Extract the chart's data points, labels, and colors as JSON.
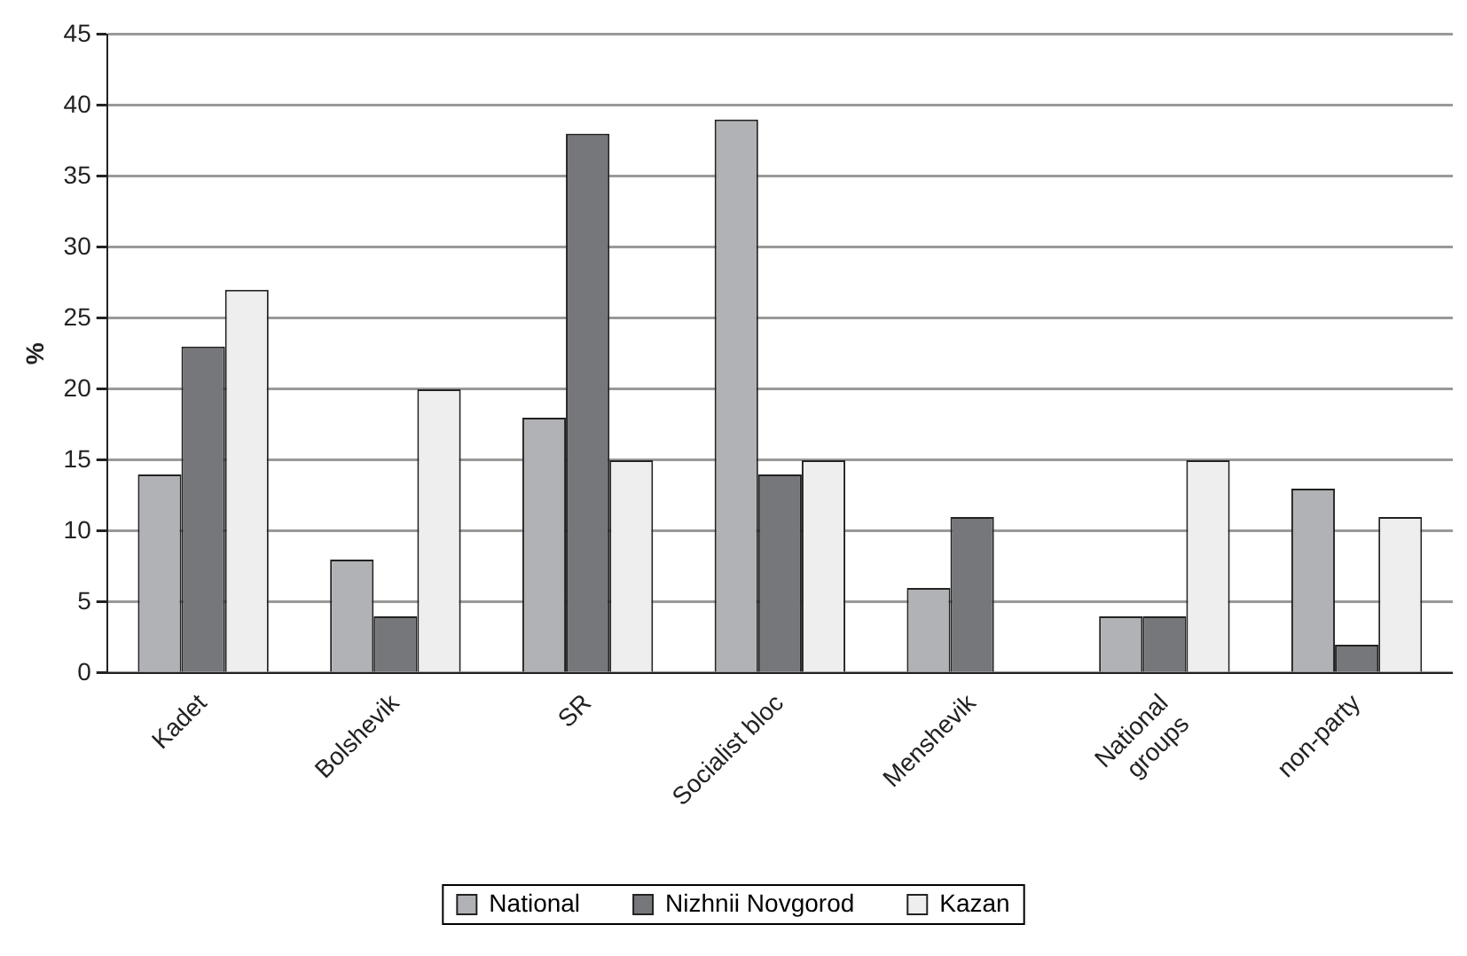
{
  "chart_data": {
    "type": "bar",
    "ylabel": "%",
    "categories": [
      "Kadet",
      "Bolshevik",
      "SR",
      "Socialist bloc",
      "Menshevik",
      "National groups",
      "non-party"
    ],
    "series": [
      {
        "name": "National",
        "color": "#b1b2b5",
        "values": [
          14,
          8,
          18,
          39,
          6,
          4,
          13
        ]
      },
      {
        "name": "Nizhnii Novgorod",
        "color": "#76777b",
        "values": [
          23,
          4,
          38,
          14,
          11,
          4,
          2
        ]
      },
      {
        "name": "Kazan",
        "color": "#eeeeee",
        "values": [
          27,
          20,
          15,
          15,
          null,
          15,
          11
        ]
      }
    ],
    "ylim": [
      0,
      45
    ],
    "yticks": [
      0,
      5,
      10,
      15,
      20,
      25,
      30,
      35,
      40,
      45
    ],
    "grid": "y",
    "legend": "bottom"
  }
}
